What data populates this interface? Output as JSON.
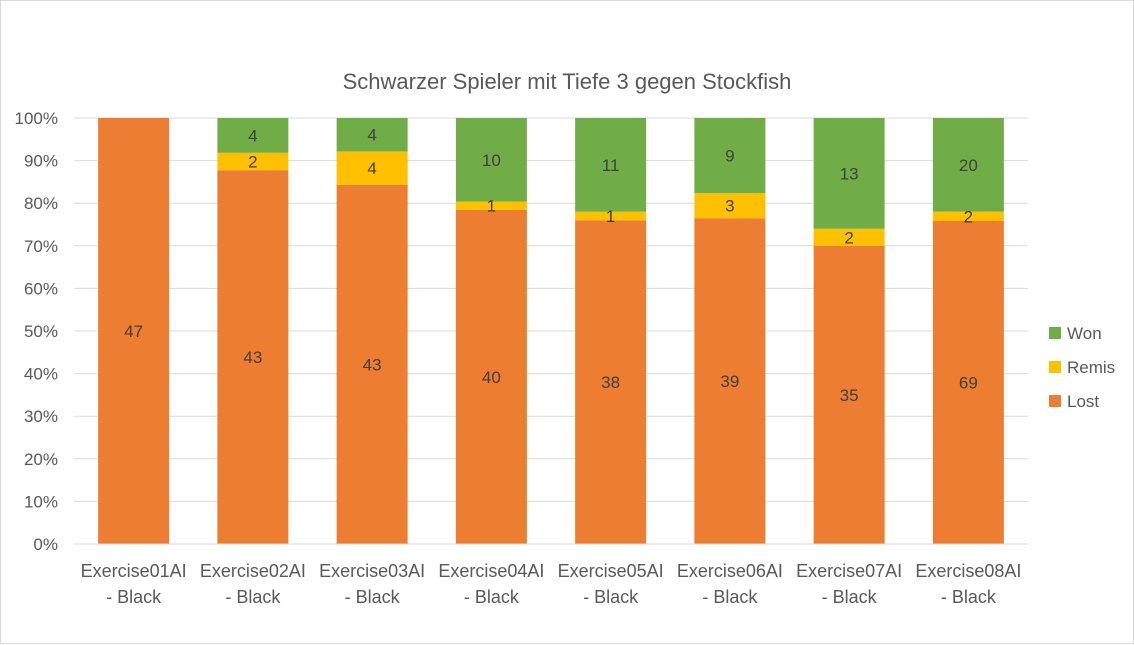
{
  "chart_data": {
    "type": "bar",
    "stacked": "percent",
    "title": "Schwarzer Spieler mit Tiefe 3 gegen Stockfish",
    "xlabel": "",
    "ylabel": "",
    "ylim": [
      0,
      100
    ],
    "yticks": [
      "0%",
      "10%",
      "20%",
      "30%",
      "40%",
      "50%",
      "60%",
      "70%",
      "80%",
      "90%",
      "100%"
    ],
    "categories": [
      [
        "Exercise01AI",
        "- Black"
      ],
      [
        "Exercise02AI",
        "- Black"
      ],
      [
        "Exercise03AI",
        "- Black"
      ],
      [
        "Exercise04AI",
        "- Black"
      ],
      [
        "Exercise05AI",
        "- Black"
      ],
      [
        "Exercise06AI",
        "- Black"
      ],
      [
        "Exercise07AI",
        "- Black"
      ],
      [
        "Exercise08AI",
        "- Black"
      ]
    ],
    "series": [
      {
        "name": "Lost",
        "color": "#ed7d31",
        "values": [
          47,
          43,
          43,
          40,
          38,
          39,
          35,
          69
        ]
      },
      {
        "name": "Remis",
        "color": "#ffc000",
        "values": [
          0,
          2,
          4,
          1,
          1,
          3,
          2,
          2
        ]
      },
      {
        "name": "Won",
        "color": "#70ad47",
        "values": [
          0,
          4,
          4,
          10,
          11,
          9,
          13,
          20
        ]
      }
    ],
    "legend_order": [
      "Won",
      "Remis",
      "Lost"
    ],
    "legend_position": "right",
    "grid": true,
    "gridline_color": "#d9d9d9"
  }
}
